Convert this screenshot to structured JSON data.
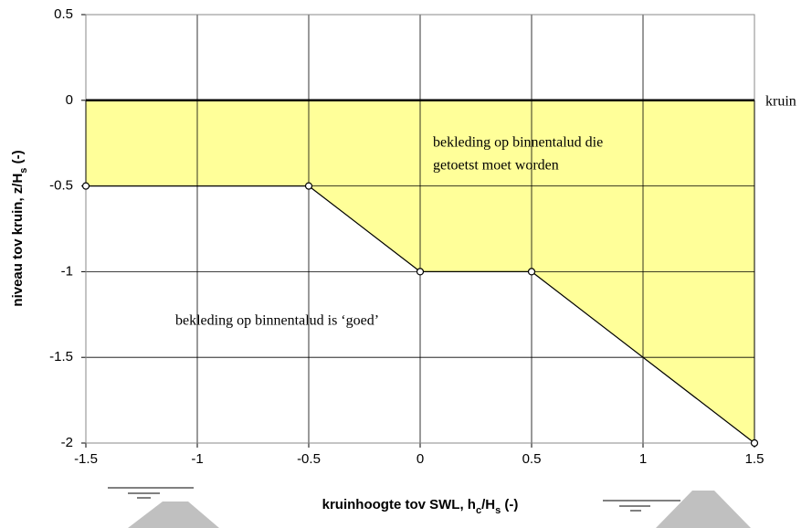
{
  "chart_data": {
    "type": "line",
    "xlabel": [
      "kruinhoogte tov SWL, h",
      "c",
      "/H",
      "s",
      " (-)"
    ],
    "ylabel": [
      "niveau tov kruin, z/H",
      "s",
      " (-)"
    ],
    "series": [
      {
        "x": [
          -1.5,
          -0.5,
          0,
          0.5,
          1.5
        ],
        "values": [
          -0.5,
          -0.5,
          -1,
          -1,
          -2
        ],
        "color": "#000000"
      }
    ],
    "crest_level": 0,
    "fill_color": "#ffff99",
    "annotations": {
      "crest": "kruin",
      "upper": [
        "bekleding op binnentalud die",
        "getoetst moet worden"
      ],
      "lower": "bekleding op binnentalud is ‘goed’"
    },
    "xlim": [
      -1.5,
      1.5
    ],
    "ylim": [
      -2,
      0.5
    ],
    "xticks": [
      -1.5,
      -1,
      -0.5,
      0,
      0.5,
      1,
      1.5
    ],
    "yticks": [
      0.5,
      0,
      -0.5,
      -1,
      -1.5,
      -2
    ],
    "grid": true
  }
}
